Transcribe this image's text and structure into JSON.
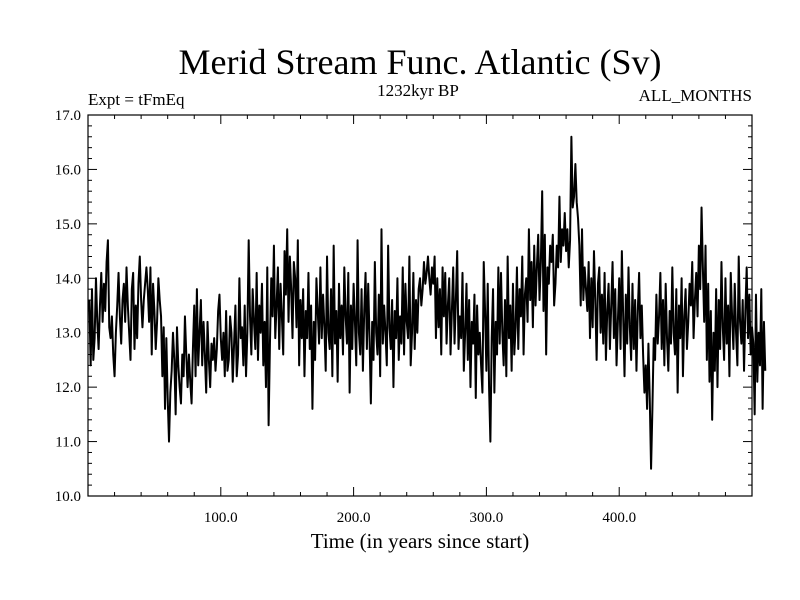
{
  "chart_data": {
    "type": "line",
    "title": "Merid Stream Func. Atlantic (Sv)",
    "subtitle_left": "Expt = tFmEq",
    "subtitle_center": "1232kyr BP",
    "subtitle_right": "ALL_MONTHS",
    "xlabel": "Time (in years since start)",
    "ylabel": "",
    "xlim": [
      0,
      500
    ],
    "ylim": [
      10.0,
      17.0
    ],
    "x_ticks": [
      100,
      200,
      300,
      400
    ],
    "x_tick_labels": [
      "100.0",
      "200.0",
      "300.0",
      "400.0"
    ],
    "y_ticks": [
      10,
      11,
      12,
      13,
      14,
      15,
      16,
      17
    ],
    "y_tick_labels": [
      "10.0",
      "11.0",
      "12.0",
      "13.0",
      "14.0",
      "15.0",
      "16.0",
      "17.0"
    ],
    "grid": false,
    "series": [
      {
        "name": "Merid Stream Func. Atlantic",
        "x_start": 1,
        "x_step": 1,
        "values": [
          13.6,
          12.4,
          13.8,
          12.5,
          12.9,
          14.0,
          13.2,
          12.7,
          13.5,
          14.1,
          13.2,
          13.9,
          13.4,
          14.3,
          14.7,
          13.1,
          12.9,
          13.3,
          12.6,
          12.2,
          13.0,
          13.5,
          14.1,
          13.3,
          12.8,
          13.6,
          13.9,
          13.2,
          14.2,
          13.5,
          13.0,
          12.5,
          13.8,
          14.1,
          12.7,
          13.5,
          12.9,
          13.9,
          14.4,
          13.6,
          13.1,
          13.6,
          13.9,
          14.2,
          13.8,
          13.2,
          14.2,
          12.6,
          13.9,
          13.4,
          12.7,
          13.2,
          14.0,
          13.6,
          13.3,
          12.2,
          13.1,
          11.6,
          12.9,
          11.8,
          11.0,
          11.9,
          12.3,
          13.0,
          12.5,
          11.5,
          13.1,
          12.4,
          12.0,
          11.7,
          12.6,
          12.2,
          13.3,
          12.6,
          12.0,
          12.6,
          12.1,
          11.7,
          12.7,
          13.5,
          12.2,
          13.8,
          12.4,
          13.0,
          13.6,
          12.4,
          13.2,
          12.6,
          11.9,
          13.2,
          12.5,
          12.0,
          12.8,
          12.5,
          12.9,
          12.3,
          12.7,
          13.4,
          13.7,
          12.9,
          12.5,
          13.0,
          12.2,
          13.4,
          12.3,
          12.5,
          13.3,
          13.0,
          12.1,
          12.8,
          13.5,
          12.2,
          12.6,
          14.0,
          12.9,
          13.1,
          12.4,
          13.5,
          12.2,
          13.0,
          14.7,
          13.3,
          12.6,
          13.8,
          13.2,
          12.7,
          14.1,
          12.5,
          13.5,
          13.0,
          13.9,
          12.4,
          13.2,
          12.0,
          14.2,
          11.3,
          12.8,
          14.0,
          13.3,
          14.6,
          12.9,
          13.5,
          14.2,
          12.7,
          13.9,
          13.3,
          12.6,
          14.5,
          13.7,
          14.9,
          13.2,
          14.4,
          13.8,
          12.9,
          14.3,
          14.0,
          13.1,
          14.7,
          12.4,
          13.6,
          12.9,
          13.8,
          12.2,
          13.4,
          12.9,
          14.1,
          12.7,
          13.5,
          11.6,
          13.2,
          12.5,
          14.0,
          13.4,
          12.8,
          14.2,
          12.9,
          13.7,
          13.1,
          12.3,
          14.4,
          13.0,
          12.7,
          13.8,
          12.2,
          14.6,
          12.8,
          13.4,
          12.1,
          13.9,
          12.9,
          13.5,
          12.6,
          14.2,
          13.3,
          12.8,
          14.1,
          11.9,
          13.5,
          12.7,
          13.9,
          13.2,
          12.4,
          14.7,
          13.0,
          12.6,
          13.8,
          12.3,
          13.4,
          14.1,
          12.7,
          13.9,
          12.9,
          11.7,
          13.2,
          12.5,
          14.3,
          13.0,
          12.6,
          13.7,
          12.2,
          14.9,
          12.8,
          13.5,
          13.0,
          12.4,
          14.6,
          13.1,
          12.7,
          13.6,
          12.0,
          13.4,
          12.9,
          14.0,
          12.5,
          13.3,
          12.8,
          14.2,
          12.6,
          13.9,
          13.2,
          12.9,
          14.4,
          12.4,
          13.0,
          14.1,
          12.7,
          13.6,
          13.0,
          13.8,
          14.0,
          13.5,
          13.8,
          14.3,
          13.9,
          14.1,
          14.4,
          14.0,
          13.7,
          14.2,
          13.9,
          14.4,
          12.9,
          14.0,
          13.1,
          13.8,
          12.6,
          14.2,
          13.3,
          14.1,
          12.8,
          13.5,
          14.0,
          12.6,
          13.4,
          14.2,
          12.8,
          13.6,
          14.5,
          12.7,
          13.3,
          12.9,
          14.1,
          12.3,
          13.0,
          13.9,
          12.5,
          13.6,
          12.0,
          13.2,
          12.8,
          13.7,
          11.8,
          13.5,
          12.6,
          13.0,
          12.4,
          11.9,
          14.3,
          13.4,
          12.3,
          13.9,
          12.0,
          11.0,
          12.9,
          13.8,
          11.9,
          13.2,
          12.6,
          14.2,
          12.8,
          14.1,
          13.0,
          12.4,
          13.6,
          12.2,
          14.4,
          12.9,
          13.5,
          12.3,
          13.9,
          12.6,
          13.1,
          14.2,
          12.7,
          13.8,
          13.3,
          14.4,
          12.6,
          13.7,
          14.0,
          13.2,
          14.9,
          13.6,
          14.3,
          13.1,
          14.6,
          13.5,
          14.2,
          14.8,
          13.6,
          14.3,
          15.6,
          13.4,
          14.8,
          12.6,
          14.2,
          13.9,
          14.6,
          14.3,
          14.8,
          13.5,
          13.9,
          14.6,
          14.2,
          15.5,
          14.3,
          14.9,
          14.6,
          15.2,
          14.5,
          14.9,
          14.2,
          14.7,
          16.6,
          15.3,
          15.5,
          16.1,
          15.4,
          15.1,
          14.6,
          13.5,
          14.9,
          13.6,
          14.2,
          13.8,
          13.4,
          14.3,
          12.9,
          14.0,
          13.1,
          14.5,
          13.6,
          12.5,
          13.9,
          14.2,
          13.0,
          13.7,
          12.8,
          14.1,
          12.5,
          13.4,
          13.9,
          12.7,
          13.5,
          14.3,
          12.9,
          13.8,
          12.4,
          13.2,
          14.0,
          12.7,
          14.5,
          13.3,
          12.2,
          13.7,
          12.8,
          14.2,
          13.1,
          12.5,
          13.9,
          12.7,
          13.6,
          12.3,
          13.4,
          14.1,
          12.9,
          13.5,
          12.6,
          11.9,
          12.4,
          11.6,
          12.8,
          11.8,
          10.5,
          11.6,
          12.9,
          12.5,
          13.7,
          12.8,
          13.3,
          14.1,
          12.7,
          13.6,
          12.4,
          13.9,
          12.9,
          12.3,
          13.4,
          12.8,
          14.2,
          13.0,
          12.6,
          13.8,
          11.9,
          13.5,
          12.9,
          14.0,
          12.2,
          13.3,
          13.8,
          12.7,
          13.2,
          13.9,
          13.5,
          14.3,
          12.9,
          13.6,
          14.1,
          13.3,
          14.6,
          13.8,
          15.3,
          14.2,
          13.2,
          14.6,
          12.5,
          13.9,
          12.1,
          13.4,
          11.4,
          13.0,
          12.3,
          13.8,
          12.0,
          13.6,
          12.7,
          14.3,
          13.1,
          12.5,
          14.0,
          12.8,
          13.5,
          12.2,
          14.1,
          13.3,
          12.7,
          13.9,
          13.0,
          12.4,
          14.4,
          13.2,
          12.8,
          13.6,
          12.3,
          13.4,
          14.2,
          12.9,
          13.7,
          12.6,
          13.1,
          12.8,
          11.5,
          13.7,
          12.1,
          13.0,
          12.4,
          13.8,
          11.6,
          13.2,
          12.3
        ]
      }
    ]
  }
}
